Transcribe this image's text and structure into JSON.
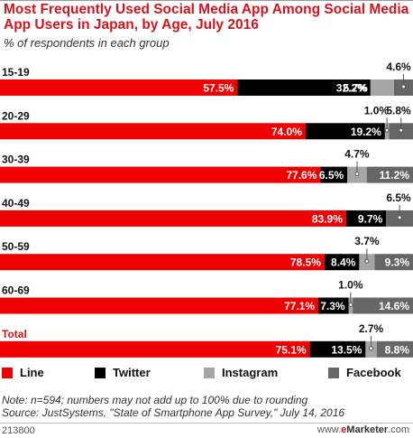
{
  "header": {
    "title": "Most Frequently Used Social Media App Among Social Media App Users in Japan, by Age, July 2016",
    "subtitle": "% of respondents in each group"
  },
  "chart_data": {
    "type": "bar",
    "orientation": "horizontal",
    "stacked": true,
    "categories": [
      "15-19",
      "20-29",
      "30-39",
      "40-49",
      "50-59",
      "60-69",
      "Total"
    ],
    "series": [
      {
        "name": "Line",
        "color": "#ee0000",
        "values": [
          57.5,
          74.0,
          77.6,
          83.9,
          78.5,
          77.1,
          75.1
        ],
        "labels": [
          "57.5%",
          "74.0%",
          "77.6%",
          "83.9%",
          "78.5%",
          "77.1%",
          "75.1%"
        ]
      },
      {
        "name": "Twitter",
        "color": "#000000",
        "values": [
          32.2,
          19.2,
          6.5,
          9.7,
          8.4,
          7.3,
          13.5
        ],
        "labels": [
          "32.2%",
          "19.2%",
          "6.5%",
          "9.7%",
          "8.4%",
          "7.3%",
          "13.5%"
        ]
      },
      {
        "name": "Instagram",
        "color": "#a6a6a6",
        "values": [
          5.7,
          1.0,
          4.7,
          0,
          3.7,
          1.0,
          2.7
        ],
        "labels": [
          "5.7%",
          "1.0%",
          "4.7%",
          "",
          "3.7%",
          "1.0%",
          "2.7%"
        ]
      },
      {
        "name": "Facebook",
        "color": "#666666",
        "values": [
          4.6,
          5.8,
          11.2,
          6.5,
          9.3,
          14.6,
          8.8
        ],
        "labels": [
          "4.6%",
          "5.8%",
          "11.2%",
          "6.5%",
          "9.3%",
          "14.6%",
          "8.8%"
        ]
      }
    ],
    "grid": false,
    "legend": "bottom"
  },
  "legend": {
    "items": [
      {
        "label": "Line",
        "color": "#ee0000"
      },
      {
        "label": "Twitter",
        "color": "#000000"
      },
      {
        "label": "Instagram",
        "color": "#a6a6a6"
      },
      {
        "label": "Facebook",
        "color": "#666666"
      }
    ]
  },
  "footer": {
    "note": "Note: n=594; numbers may not add up to 100% due to rounding",
    "source": "Source: JustSystems, \"State of Smartphone App Survey,\" July 14, 2016",
    "id": "213800",
    "brand_prefix": "www.",
    "brand_e": "e",
    "brand_main": "Marketer",
    "brand_suffix": ".com"
  }
}
